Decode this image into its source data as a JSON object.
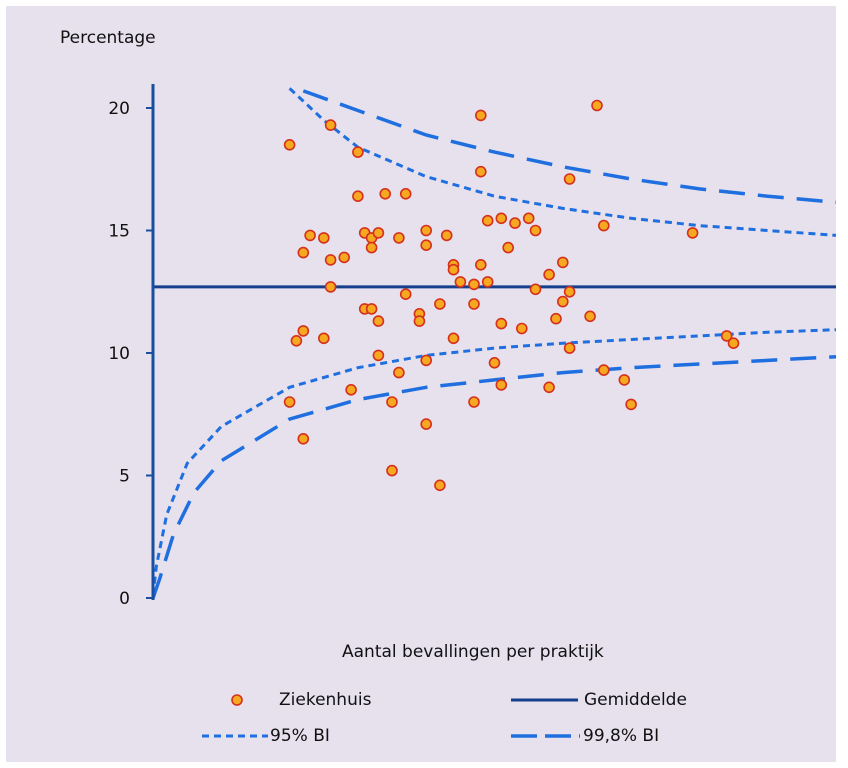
{
  "chart_data": {
    "type": "scatter",
    "title": "",
    "ylabel": "Percentage",
    "xlabel": "Aantal bevallingen per praktijk",
    "ylim": [
      0,
      21
    ],
    "yticks": [
      0,
      5,
      10,
      15,
      20
    ],
    "colors": {
      "background": "#e6e1ed",
      "axis": "#1a4fa0",
      "marker_fill": "#f6a821",
      "marker_edge": "#d5301d",
      "mean": "#153e8c",
      "ci": "#1f6fe0"
    },
    "legend": {
      "placement": "bottom",
      "entries": [
        {
          "label": "Ziekenhuis",
          "kind": "marker"
        },
        {
          "label": "Gemiddelde",
          "kind": "solid-line"
        },
        {
          "label": "95% BI",
          "kind": "short-dash-line"
        },
        {
          "label": "99,8% BI",
          "kind": "long-dash-line"
        }
      ]
    },
    "mean": 12.7,
    "ci95": {
      "upper": [
        [
          0.2,
          20.8
        ],
        [
          0.25,
          19.5
        ],
        [
          0.3,
          18.4
        ],
        [
          0.4,
          17.2
        ],
        [
          0.5,
          16.4
        ],
        [
          0.6,
          15.9
        ],
        [
          0.7,
          15.5
        ],
        [
          0.8,
          15.2
        ],
        [
          0.9,
          15.0
        ],
        [
          1.0,
          14.8
        ]
      ],
      "lower": [
        [
          0.0,
          0.1
        ],
        [
          0.005,
          1.3
        ],
        [
          0.02,
          3.4
        ],
        [
          0.05,
          5.5
        ],
        [
          0.1,
          7.0
        ],
        [
          0.2,
          8.6
        ],
        [
          0.3,
          9.4
        ],
        [
          0.4,
          9.9
        ],
        [
          0.5,
          10.2
        ],
        [
          0.6,
          10.4
        ],
        [
          0.7,
          10.55
        ],
        [
          0.8,
          10.7
        ],
        [
          0.9,
          10.85
        ],
        [
          1.0,
          10.95
        ]
      ]
    },
    "ci998": {
      "upper": [
        [
          0.22,
          20.7
        ],
        [
          0.3,
          19.9
        ],
        [
          0.4,
          18.9
        ],
        [
          0.5,
          18.2
        ],
        [
          0.6,
          17.6
        ],
        [
          0.7,
          17.1
        ],
        [
          0.8,
          16.7
        ],
        [
          0.9,
          16.4
        ],
        [
          1.0,
          16.15
        ]
      ],
      "lower": [
        [
          0.0,
          0.0
        ],
        [
          0.01,
          0.8
        ],
        [
          0.03,
          2.6
        ],
        [
          0.06,
          4.3
        ],
        [
          0.1,
          5.6
        ],
        [
          0.2,
          7.3
        ],
        [
          0.3,
          8.1
        ],
        [
          0.4,
          8.6
        ],
        [
          0.5,
          8.9
        ],
        [
          0.6,
          9.2
        ],
        [
          0.7,
          9.4
        ],
        [
          0.8,
          9.55
        ],
        [
          0.9,
          9.7
        ],
        [
          1.0,
          9.85
        ]
      ]
    },
    "points": [
      [
        0.2,
        18.5
      ],
      [
        0.26,
        19.3
      ],
      [
        0.3,
        18.2
      ],
      [
        0.48,
        19.7
      ],
      [
        0.65,
        20.1
      ],
      [
        0.61,
        17.1
      ],
      [
        0.48,
        17.4
      ],
      [
        0.53,
        15.3
      ],
      [
        0.66,
        15.2
      ],
      [
        0.34,
        16.5
      ],
      [
        0.37,
        16.5
      ],
      [
        0.3,
        16.4
      ],
      [
        0.22,
        14.1
      ],
      [
        0.23,
        14.8
      ],
      [
        0.25,
        14.7
      ],
      [
        0.28,
        13.9
      ],
      [
        0.31,
        14.9
      ],
      [
        0.32,
        14.7
      ],
      [
        0.33,
        14.9
      ],
      [
        0.32,
        14.3
      ],
      [
        0.36,
        14.7
      ],
      [
        0.4,
        15.0
      ],
      [
        0.4,
        14.4
      ],
      [
        0.43,
        14.8
      ],
      [
        0.44,
        13.6
      ],
      [
        0.44,
        13.4
      ],
      [
        0.48,
        13.6
      ],
      [
        0.49,
        15.4
      ],
      [
        0.51,
        15.5
      ],
      [
        0.52,
        14.3
      ],
      [
        0.55,
        15.5
      ],
      [
        0.56,
        15.0
      ],
      [
        0.26,
        13.8
      ],
      [
        0.26,
        12.7
      ],
      [
        0.45,
        12.9
      ],
      [
        0.47,
        12.8
      ],
      [
        0.49,
        12.9
      ],
      [
        0.56,
        12.6
      ],
      [
        0.58,
        13.2
      ],
      [
        0.6,
        13.7
      ],
      [
        0.61,
        12.5
      ],
      [
        0.31,
        11.8
      ],
      [
        0.32,
        11.8
      ],
      [
        0.33,
        11.3
      ],
      [
        0.37,
        12.4
      ],
      [
        0.39,
        11.6
      ],
      [
        0.39,
        11.3
      ],
      [
        0.42,
        12.0
      ],
      [
        0.47,
        12.0
      ],
      [
        0.51,
        11.2
      ],
      [
        0.54,
        11.0
      ],
      [
        0.59,
        11.4
      ],
      [
        0.6,
        12.1
      ],
      [
        0.64,
        11.5
      ],
      [
        0.21,
        10.5
      ],
      [
        0.22,
        10.9
      ],
      [
        0.25,
        10.6
      ],
      [
        0.33,
        9.9
      ],
      [
        0.36,
        9.2
      ],
      [
        0.4,
        9.7
      ],
      [
        0.44,
        10.6
      ],
      [
        0.5,
        9.6
      ],
      [
        0.61,
        10.2
      ],
      [
        0.79,
        14.9
      ],
      [
        0.84,
        10.7
      ],
      [
        0.85,
        10.4
      ],
      [
        0.2,
        8.0
      ],
      [
        0.29,
        8.5
      ],
      [
        0.35,
        8.0
      ],
      [
        0.47,
        8.0
      ],
      [
        0.51,
        8.7
      ],
      [
        0.58,
        8.6
      ],
      [
        0.66,
        9.3
      ],
      [
        0.69,
        8.9
      ],
      [
        0.7,
        7.9
      ],
      [
        0.22,
        6.5
      ],
      [
        0.4,
        7.1
      ],
      [
        0.35,
        5.2
      ],
      [
        0.42,
        4.6
      ]
    ]
  }
}
